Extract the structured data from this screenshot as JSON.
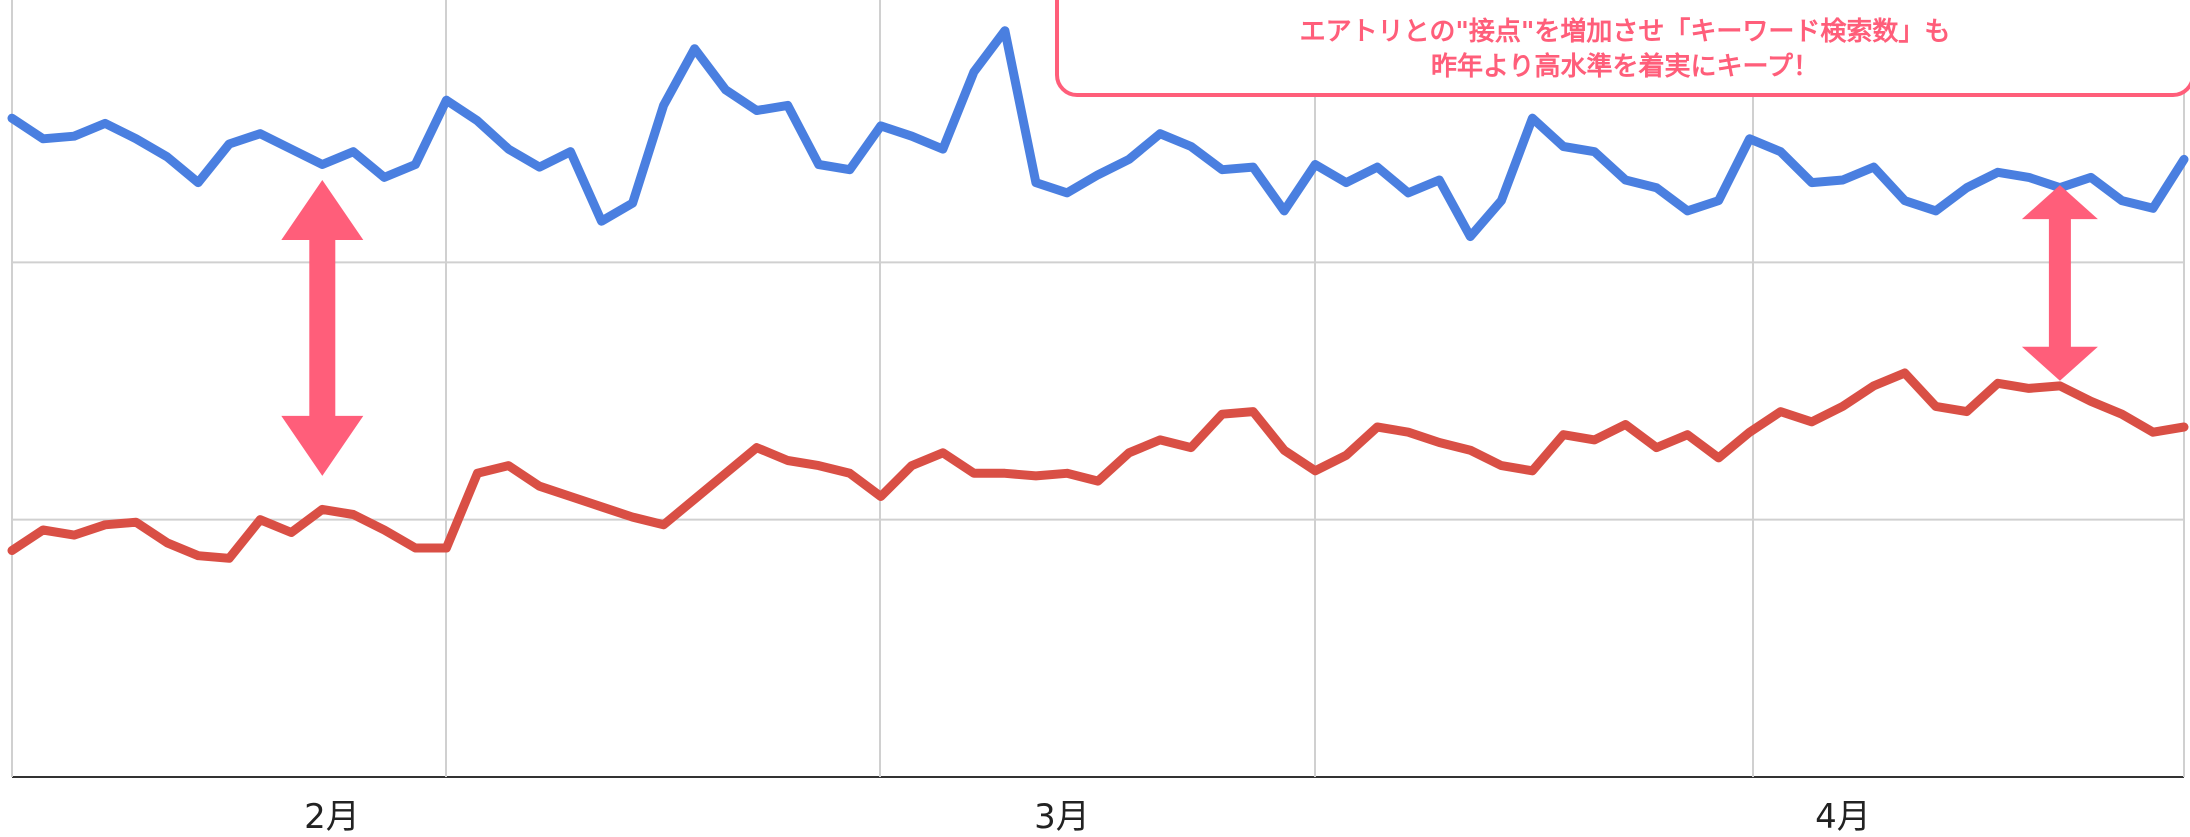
{
  "chart_data": {
    "type": "line",
    "x_tick_labels": [
      "2月",
      "3月",
      "4月"
    ],
    "y_range": [
      0,
      3
    ],
    "grid": true,
    "series": [
      {
        "color": "#4a7fe0",
        "values": [
          2.56,
          2.48,
          2.49,
          2.54,
          2.48,
          2.41,
          2.31,
          2.46,
          2.5,
          2.44,
          2.38,
          2.43,
          2.33,
          2.38,
          2.63,
          2.55,
          2.44,
          2.37,
          2.43,
          2.16,
          2.23,
          2.61,
          2.83,
          2.67,
          2.59,
          2.61,
          2.38,
          2.36,
          2.53,
          2.49,
          2.44,
          2.74,
          2.9,
          2.31,
          2.27,
          2.34,
          2.4,
          2.5,
          2.45,
          2.36,
          2.37,
          2.2,
          2.38,
          2.31,
          2.37,
          2.27,
          2.32,
          2.1,
          2.24,
          2.56,
          2.45,
          2.43,
          2.32,
          2.29,
          2.2,
          2.24,
          2.48,
          2.43,
          2.31,
          2.32,
          2.37,
          2.24,
          2.2,
          2.29,
          2.35,
          2.33,
          2.29,
          2.33,
          2.24,
          2.21,
          2.4
        ]
      },
      {
        "color": "#d94f45",
        "values": [
          0.88,
          0.96,
          0.94,
          0.98,
          0.99,
          0.91,
          0.86,
          0.85,
          1.0,
          0.95,
          1.04,
          1.02,
          0.96,
          0.89,
          0.89,
          1.18,
          1.21,
          1.13,
          1.09,
          1.05,
          1.01,
          0.98,
          1.08,
          1.18,
          1.28,
          1.23,
          1.21,
          1.18,
          1.09,
          1.21,
          1.26,
          1.18,
          1.18,
          1.17,
          1.18,
          1.15,
          1.26,
          1.31,
          1.28,
          1.41,
          1.42,
          1.27,
          1.19,
          1.25,
          1.36,
          1.34,
          1.3,
          1.27,
          1.21,
          1.19,
          1.33,
          1.31,
          1.37,
          1.28,
          1.33,
          1.24,
          1.34,
          1.42,
          1.38,
          1.44,
          1.52,
          1.57,
          1.44,
          1.42,
          1.53,
          1.51,
          1.52,
          1.46,
          1.41,
          1.34,
          1.36
        ]
      }
    ],
    "annotations": [
      {
        "type": "double-arrow",
        "color": "#ff5e7a",
        "at_index": 10,
        "from_value": 2.32,
        "to_value": 1.17
      },
      {
        "type": "double-arrow",
        "color": "#ff5e7a",
        "at_index": 66,
        "from_value": 2.3,
        "to_value": 1.54
      }
    ]
  },
  "callout": {
    "line1": "エアトリとの\"接点\"を増加させ「キーワード検索数」も",
    "line2": "昨年より高水準を着実にキープ！",
    "border_color": "#ff5e7a",
    "text_color": "#ff5e7a"
  }
}
